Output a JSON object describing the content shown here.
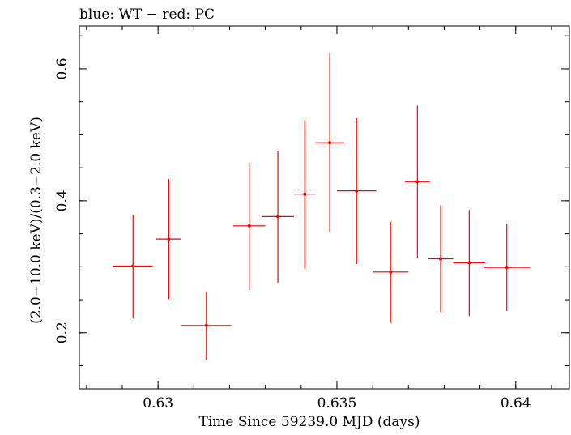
{
  "chart_data": {
    "type": "scatter",
    "title": "blue: WT − red: PC",
    "xlabel": "Time Since 59239.0 MJD (days)",
    "ylabel": "(2.0−10.0 keV)/(0.3−2.0 keV)",
    "xlim": [
      0.6278,
      0.6415
    ],
    "ylim": [
      0.115,
      0.665
    ],
    "xticks": [
      {
        "value": 0.63,
        "label": "0.63"
      },
      {
        "value": 0.635,
        "label": "0.635"
      },
      {
        "value": 0.64,
        "label": "0.64"
      }
    ],
    "yticks": [
      {
        "value": 0.2,
        "label": "0.2"
      },
      {
        "value": 0.4,
        "label": "0.4"
      },
      {
        "value": 0.6,
        "label": "0.6"
      }
    ],
    "x_minor_step": 0.001,
    "y_minor_step": 0.05,
    "grid": false,
    "series": [
      {
        "color": "#ff0000",
        "points": [
          {
            "x": 0.6293,
            "xerr": 0.00055,
            "y": 0.301,
            "yerr_low": 0.079,
            "yerr_high": 0.078
          },
          {
            "x": 0.6303,
            "xerr": 0.00035,
            "y": 0.342,
            "yerr_low": 0.091,
            "yerr_high": 0.091
          },
          {
            "x": 0.63135,
            "xerr": 0.0007,
            "y": 0.211,
            "yerr_low": 0.052,
            "yerr_high": 0.051
          },
          {
            "x": 0.63255,
            "xerr": 0.00045,
            "y": 0.362,
            "yerr_low": 0.097,
            "yerr_high": 0.096
          },
          {
            "x": 0.63335,
            "xerr": 0.00045,
            "y": 0.376,
            "yerr_low": 0.1,
            "yerr_high": 0.1
          },
          {
            "x": 0.6341,
            "xerr": 0.0003,
            "y": 0.41,
            "yerr_low": 0.113,
            "yerr_high": 0.112
          },
          {
            "x": 0.6348,
            "xerr": 0.0004,
            "y": 0.488,
            "yerr_low": 0.136,
            "yerr_high": 0.135
          },
          {
            "x": 0.63555,
            "xerr": 0.00055,
            "y": 0.415,
            "yerr_low": 0.111,
            "yerr_high": 0.11
          },
          {
            "x": 0.6365,
            "xerr": 0.0005,
            "y": 0.292,
            "yerr_low": 0.077,
            "yerr_high": 0.076
          },
          {
            "x": 0.63725,
            "xerr": 0.00035,
            "y": 0.429,
            "yerr_low": 0.116,
            "yerr_high": 0.115
          },
          {
            "x": 0.6379,
            "xerr": 0.00035,
            "y": 0.312,
            "yerr_low": 0.081,
            "yerr_high": 0.081
          },
          {
            "x": 0.6387,
            "xerr": 0.00045,
            "y": 0.306,
            "yerr_low": 0.081,
            "yerr_high": 0.08
          },
          {
            "x": 0.63975,
            "xerr": 0.00065,
            "y": 0.299,
            "yerr_low": 0.066,
            "yerr_high": 0.066
          }
        ]
      }
    ]
  }
}
